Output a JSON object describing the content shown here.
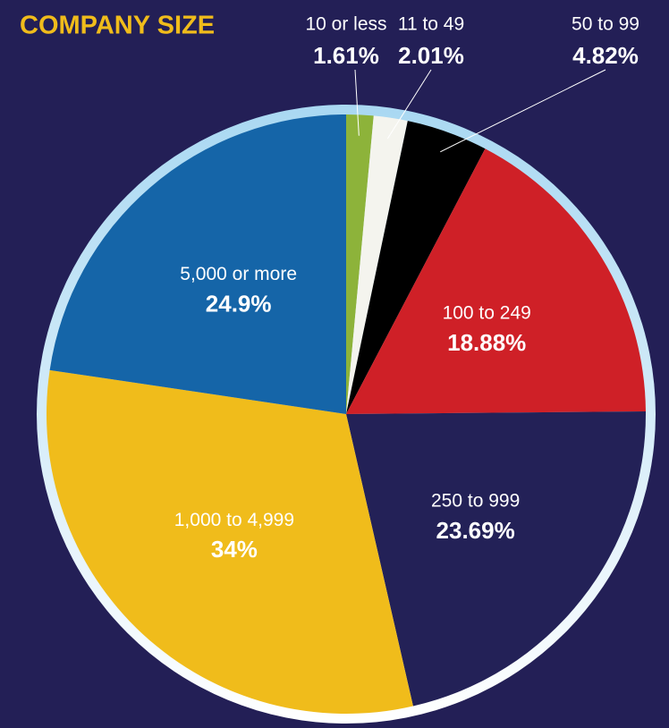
{
  "chart_data": {
    "type": "pie",
    "title": "COMPANY SIZE",
    "categories": [
      "10 or less",
      "11 to 49",
      "50 to 99",
      "100 to 249",
      "250 to 999",
      "1,000 to 4,999",
      "5,000 or more"
    ],
    "values": [
      1.61,
      2.01,
      4.82,
      18.88,
      23.69,
      34,
      24.9
    ],
    "value_labels": [
      "1.61%",
      "2.01%",
      "4.82%",
      "18.88%",
      "23.69%",
      "34%",
      "24.9%"
    ],
    "colors": [
      "#8db33a",
      "#f4f4ee",
      "#000000",
      "#cf2027",
      "#232157",
      "#f0bc1b",
      "#1565a8"
    ]
  }
}
